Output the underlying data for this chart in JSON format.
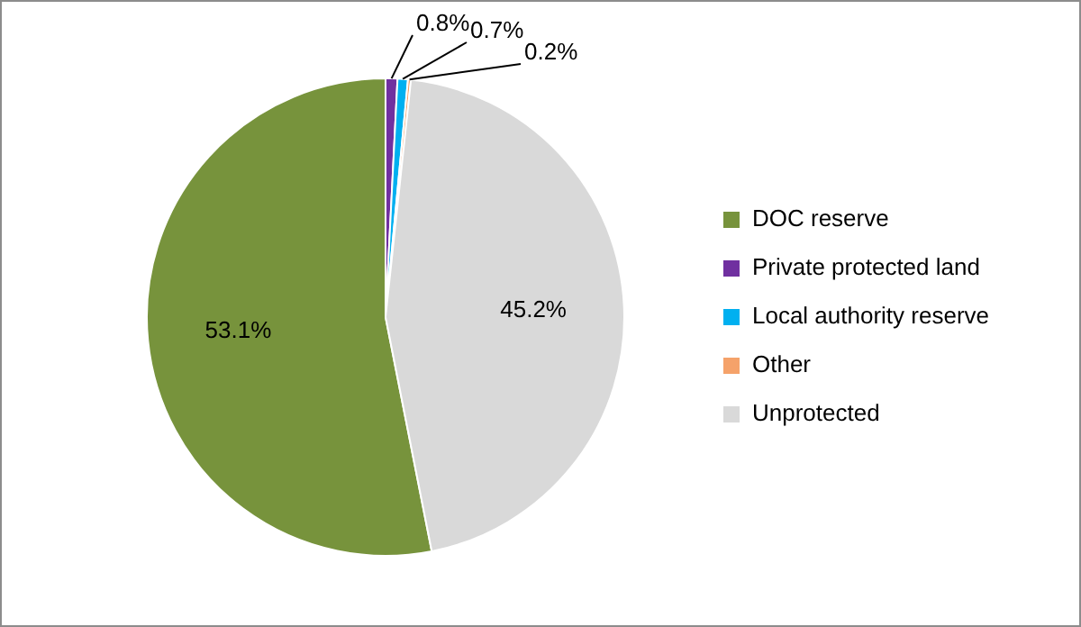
{
  "chart_data": {
    "type": "pie",
    "categories": [
      "DOC reserve",
      "Private protected land",
      "Local authority reserve",
      "Other",
      "Unprotected"
    ],
    "values": [
      53.1,
      0.8,
      0.7,
      0.2,
      45.2
    ],
    "colors": [
      "#77933c",
      "#7030a0",
      "#00b0f0",
      "#f5a26a",
      "#d9d9d9"
    ],
    "value_labels": [
      "53.1%",
      "0.8%",
      "0.7%",
      "0.2%",
      "45.2%"
    ],
    "legend": "right"
  }
}
